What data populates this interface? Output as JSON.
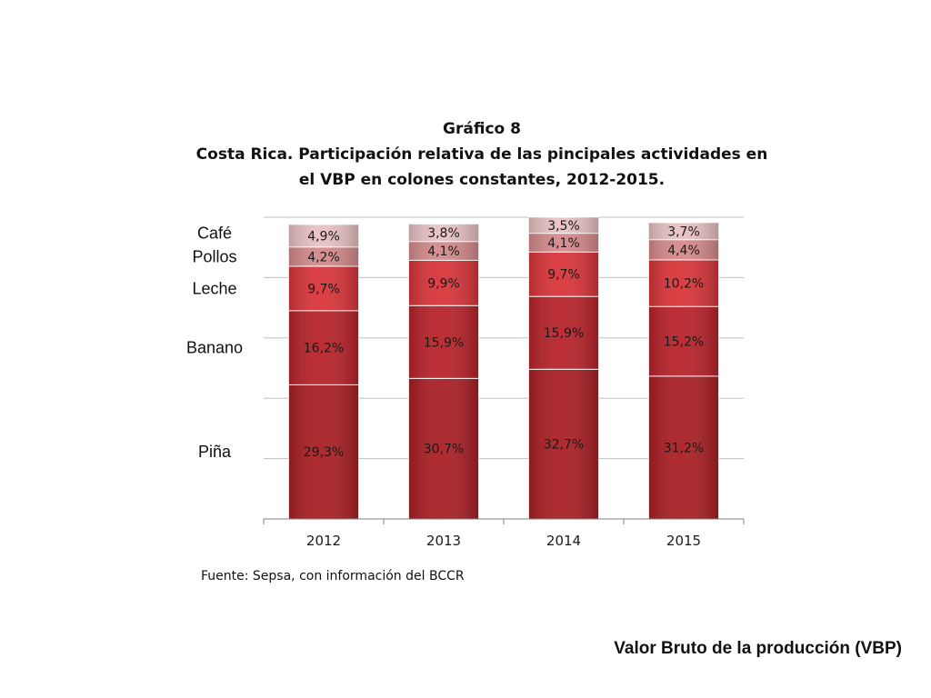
{
  "chart_data": {
    "type": "bar",
    "stacked": true,
    "title": "Gráfico 8",
    "subtitle_lines": [
      "Costa Rica.  Participación relativa de las pincipales actividades en",
      "el VBP en colones constantes, 2012-2015."
    ],
    "categories": [
      "2012",
      "2013",
      "2014",
      "2015"
    ],
    "series": [
      {
        "name": "Piña",
        "values": [
          29.3,
          30.7,
          32.7,
          31.2
        ],
        "labels": [
          "29,3%",
          "30,7%",
          "32,7%",
          "31,2%"
        ],
        "color": "#a91f24"
      },
      {
        "name": "Banano",
        "values": [
          16.2,
          15.9,
          15.9,
          15.2
        ],
        "labels": [
          "16,2%",
          "15,9%",
          "15,9%",
          "15,2%"
        ],
        "color": "#b8232a"
      },
      {
        "name": "Leche",
        "values": [
          9.7,
          9.9,
          9.7,
          10.2
        ],
        "labels": [
          "9,7%",
          "9,9%",
          "9,7%",
          "10,2%"
        ],
        "color": "#d9353a"
      },
      {
        "name": "Pollos",
        "values": [
          4.2,
          4.1,
          4.1,
          4.4
        ],
        "labels": [
          "4,2%",
          "4,1%",
          "4,1%",
          "4,4%"
        ],
        "color": "#d58a8c"
      },
      {
        "name": "Café",
        "values": [
          4.9,
          3.8,
          3.5,
          3.7
        ],
        "labels": [
          "4,9%",
          "3,8%",
          "3,5%",
          "3,7%"
        ],
        "color": "#e8c2c3"
      }
    ],
    "grid": true,
    "legend": "left, aligned with stack segments"
  },
  "source_note": "Fuente:  Sepsa, con información del BCCR",
  "footer_label": "Valor Bruto de la producción (VBP)"
}
